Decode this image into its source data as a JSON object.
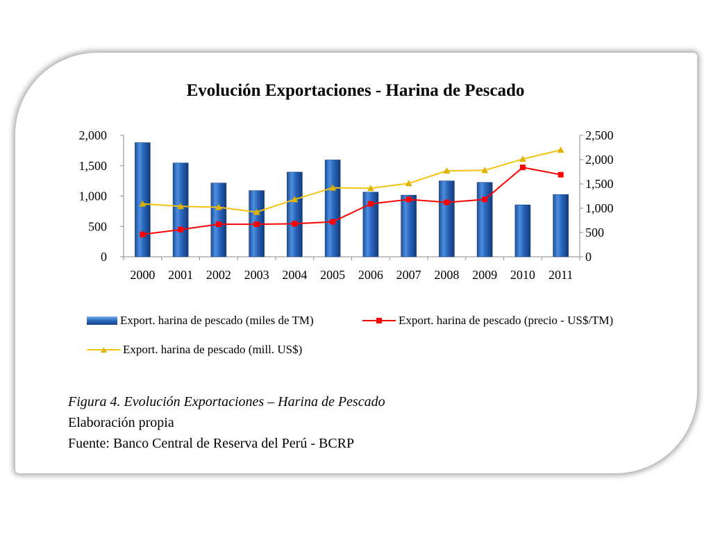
{
  "chart_data": {
    "type": "bar",
    "title": "Evolución Exportaciones - Harina de Pescado",
    "categories": [
      "2000",
      "2001",
      "2002",
      "2003",
      "2004",
      "2005",
      "2006",
      "2007",
      "2008",
      "2009",
      "2010",
      "2011"
    ],
    "y_left_ticks": [
      "0",
      "500",
      "1,000",
      "1,500",
      "2,000"
    ],
    "y_right_ticks": [
      "0",
      "500",
      "1,000",
      "1,500",
      "2,000",
      "2,500"
    ],
    "y_left_lim": [
      0,
      2000
    ],
    "y_right_lim": [
      0,
      2500
    ],
    "series": [
      {
        "name": "Export. harina de pescado (miles de TM)",
        "type": "bar",
        "axis": "left",
        "color": "#2e6fc4",
        "values": [
          1880,
          1545,
          1215,
          1090,
          1395,
          1595,
          1065,
          1015,
          1250,
          1225,
          855,
          1025
        ]
      },
      {
        "name": "Export. harina de pescado (precio - US$/TM)",
        "type": "line",
        "axis": "right",
        "color": "#ff0000",
        "marker": "square",
        "values": [
          460,
          560,
          670,
          670,
          680,
          720,
          1090,
          1180,
          1120,
          1180,
          1840,
          1690
        ]
      },
      {
        "name": "Export. harina de pescado (mill. US$)",
        "type": "line",
        "axis": "right",
        "color": "#f2c40f",
        "marker": "triangle",
        "values": [
          1090,
          1040,
          1020,
          920,
          1180,
          1420,
          1410,
          1510,
          1770,
          1780,
          2010,
          2200
        ]
      }
    ],
    "grid": false,
    "legend_position": "bottom"
  },
  "caption": {
    "figure_label": "Figura 4. Evolución Exportaciones – Harina de Pescado",
    "line2": "Elaboración propia",
    "line3": "Fuente: Banco Central de Reserva del Perú - BCRP"
  }
}
